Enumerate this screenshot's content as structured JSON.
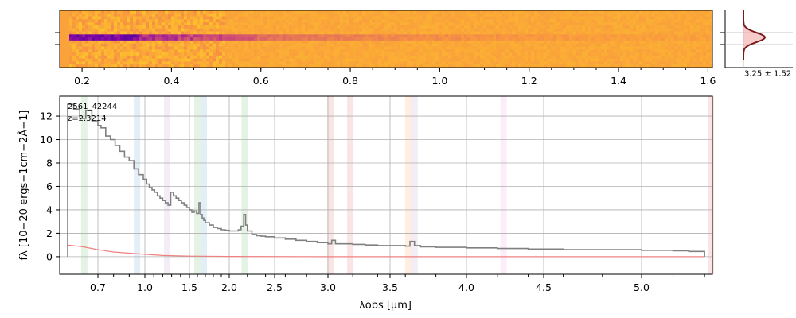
{
  "chart_data": [
    {
      "type": "heatmap",
      "panel": "2d-spectrum",
      "x_unit": "um",
      "x_ticks": [
        "0.2",
        "0.4",
        "0.6",
        "0.8",
        "1.0",
        "1.2",
        "1.4",
        "1.6"
      ],
      "xlim": [
        0.15,
        1.61
      ],
      "colormap": "plasma",
      "trace_rows": 2,
      "rows": 19
    },
    {
      "type": "line",
      "panel": "spatial-profile",
      "profile_center": 3.25,
      "profile_width": 1.52,
      "label": "3.25 ± 1.52"
    },
    {
      "type": "line",
      "panel": "1d-spectrum",
      "object_id": "2561_42244",
      "redshift_label": "z=2.3214",
      "xlabel": "λobs [μm]",
      "ylabel": "fλ [10−20 ergs−1cm−2Å−1]",
      "xlim": [
        0.6,
        5.45
      ],
      "ylim": [
        -1.5,
        13.7
      ],
      "x_ticks": [
        "0.7",
        "1.0",
        "1.5",
        "2.0",
        "2.5",
        "3.0",
        "3.5",
        "4.0",
        "4.5",
        "5.0"
      ],
      "y_ticks": [
        "0",
        "2",
        "4",
        "6",
        "8",
        "10",
        "12"
      ],
      "grid": true,
      "series": [
        {
          "color": "#808080",
          "x": [
            0.6,
            0.62,
            0.64,
            0.66,
            0.68,
            0.7,
            0.72,
            0.75,
            0.78,
            0.81,
            0.84,
            0.87,
            0.9,
            0.93,
            0.96,
            0.99,
            1.02,
            1.05,
            1.08,
            1.11,
            1.14,
            1.17,
            1.2,
            1.23,
            1.26,
            1.29,
            1.32,
            1.35,
            1.38,
            1.41,
            1.44,
            1.47,
            1.5,
            1.53,
            1.56,
            1.59,
            1.62,
            1.64,
            1.66,
            1.68,
            1.7,
            1.75,
            1.8,
            1.85,
            1.9,
            1.95,
            2.0,
            2.05,
            2.1,
            2.13,
            2.16,
            2.18,
            2.2,
            2.25,
            2.3,
            2.35,
            2.4,
            2.5,
            2.6,
            2.7,
            2.8,
            2.9,
            3.0,
            3.03,
            3.06,
            3.1,
            3.2,
            3.3,
            3.4,
            3.5,
            3.6,
            3.63,
            3.66,
            3.7,
            3.8,
            3.9,
            4.0,
            4.2,
            4.4,
            4.6,
            4.8,
            5.0,
            5.2,
            5.3,
            5.4
          ],
          "y": [
            13.0,
            12.6,
            11.8,
            12.5,
            11.6,
            11.2,
            11.0,
            10.3,
            10.0,
            9.5,
            9.0,
            8.5,
            8.2,
            7.5,
            7.0,
            6.6,
            6.2,
            5.9,
            5.7,
            5.5,
            5.2,
            5.0,
            4.8,
            4.6,
            4.4,
            5.5,
            5.2,
            5.0,
            4.8,
            4.6,
            4.4,
            4.2,
            4.0,
            3.8,
            3.9,
            3.7,
            4.6,
            3.6,
            3.3,
            3.1,
            2.9,
            2.7,
            2.5,
            2.4,
            2.3,
            2.25,
            2.2,
            2.2,
            2.3,
            2.6,
            3.6,
            2.7,
            2.2,
            1.9,
            1.8,
            1.75,
            1.7,
            1.6,
            1.5,
            1.4,
            1.3,
            1.2,
            1.1,
            1.4,
            1.1,
            1.1,
            1.05,
            1.0,
            0.95,
            0.95,
            0.9,
            1.3,
            0.95,
            0.85,
            0.8,
            0.8,
            0.75,
            0.7,
            0.65,
            0.6,
            0.6,
            0.55,
            0.5,
            0.45,
            0.4
          ]
        },
        {
          "color": "#f08080",
          "x": [
            0.6,
            0.65,
            0.7,
            0.8,
            0.9,
            1.0,
            1.2,
            1.5,
            2.0,
            3.0,
            4.0,
            5.0,
            5.4
          ],
          "y": [
            1.0,
            0.85,
            0.6,
            0.4,
            0.3,
            0.2,
            0.1,
            0.05,
            0.02,
            0.0,
            0.0,
            0.0,
            0.0
          ]
        }
      ],
      "line_bands": [
        {
          "center": 0.655,
          "color": "#2ca02c"
        },
        {
          "center": 0.95,
          "color": "#1f77b4"
        },
        {
          "center": 1.25,
          "color": "#9467bd"
        },
        {
          "center": 1.6,
          "color": "#2ca02c"
        },
        {
          "center": 1.68,
          "color": "#1f77b4"
        },
        {
          "center": 2.17,
          "color": "#2ca02c"
        },
        {
          "center": 3.02,
          "color": "#d62728"
        },
        {
          "center": 3.18,
          "color": "#d62728"
        },
        {
          "center": 3.62,
          "color": "#ff7f0e"
        },
        {
          "center": 3.66,
          "color": "#9467bd"
        },
        {
          "center": 4.24,
          "color": "#e377c2"
        },
        {
          "center": 5.44,
          "color": "#d62728"
        }
      ]
    }
  ]
}
